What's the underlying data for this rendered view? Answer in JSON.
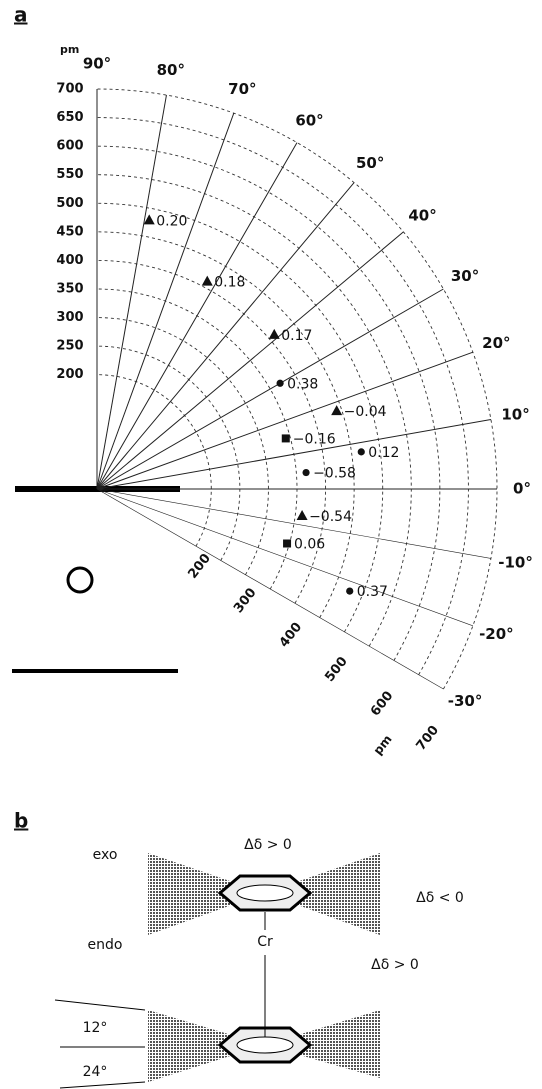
{
  "panel_labels": [
    "a",
    "b"
  ],
  "chart_data": {
    "type": "polar",
    "r_unit": "pm",
    "rlim": [
      0,
      700
    ],
    "rticks": [
      200,
      250,
      300,
      350,
      400,
      450,
      500,
      550,
      600,
      650,
      700
    ],
    "rticks_lower": [
      200,
      300,
      400,
      500,
      600,
      700
    ],
    "thetalim": [
      -30,
      90
    ],
    "thetaticks": [
      {
        "value": 90,
        "label": "90°"
      },
      {
        "value": 80,
        "label": "80°"
      },
      {
        "value": 70,
        "label": "70°"
      },
      {
        "value": 60,
        "label": "60°"
      },
      {
        "value": 50,
        "label": "50°"
      },
      {
        "value": 40,
        "label": "40°"
      },
      {
        "value": 30,
        "label": "30°"
      },
      {
        "value": 20,
        "label": "20°"
      },
      {
        "value": 10,
        "label": "10°"
      },
      {
        "value": 0,
        "label": "0°"
      },
      {
        "value": -10,
        "label": "-10°"
      },
      {
        "value": -20,
        "label": "-20°"
      },
      {
        "value": -30,
        "label": "-30°"
      }
    ],
    "color": "#111111",
    "series": [
      {
        "marker": "triangle",
        "r": [
          479,
          411,
          411,
          441,
          362
        ],
        "theta": [
          79,
          62,
          41,
          18,
          -7.5
        ],
        "labels": [
          "0.20",
          "0.18",
          "0.17",
          "−0.04",
          "−0.54"
        ]
      },
      {
        "marker": "circle",
        "r": [
          370,
          467,
          367,
          477
        ],
        "theta": [
          30,
          8,
          4.5,
          -22
        ],
        "labels": [
          "0.38",
          "0.12",
          "−0.58",
          "0.37"
        ]
      },
      {
        "marker": "square",
        "r": [
          342,
          346
        ],
        "theta": [
          15,
          -16
        ],
        "labels": [
          "−0.16",
          "0.06"
        ]
      }
    ]
  },
  "diagram": {
    "exo": "exo",
    "endo": "endo",
    "metal": "Cr",
    "exo_top": "Δδ > 0",
    "exo_side": "Δδ < 0",
    "endo_side": "Δδ > 0",
    "angle_small": "12°",
    "angle_large": "24°"
  }
}
